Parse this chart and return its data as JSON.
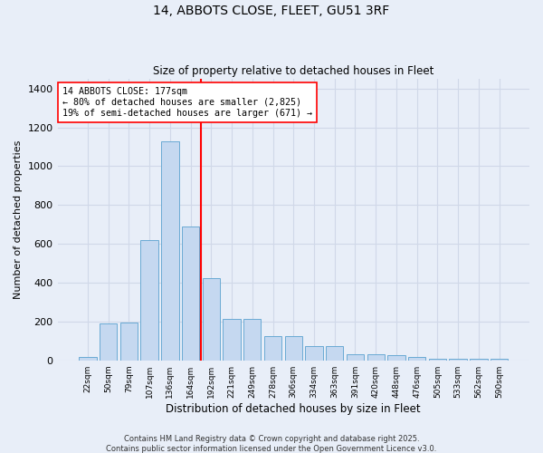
{
  "title": "14, ABBOTS CLOSE, FLEET, GU51 3RF",
  "subtitle": "Size of property relative to detached houses in Fleet",
  "xlabel": "Distribution of detached houses by size in Fleet",
  "ylabel": "Number of detached properties",
  "bin_labels": [
    "22sqm",
    "50sqm",
    "79sqm",
    "107sqm",
    "136sqm",
    "164sqm",
    "192sqm",
    "221sqm",
    "249sqm",
    "278sqm",
    "306sqm",
    "334sqm",
    "363sqm",
    "391sqm",
    "420sqm",
    "448sqm",
    "476sqm",
    "505sqm",
    "533sqm",
    "562sqm",
    "590sqm"
  ],
  "bar_values": [
    15,
    190,
    195,
    620,
    1130,
    690,
    425,
    215,
    215,
    125,
    125,
    75,
    75,
    30,
    30,
    25,
    15,
    10,
    10,
    10,
    10
  ],
  "bar_color": "#c5d8f0",
  "bar_edge_color": "#6aaad4",
  "background_color": "#e8eef8",
  "grid_color": "#d0d8e8",
  "red_line_bin": 6,
  "annotation_line1": "14 ABBOTS CLOSE: 177sqm",
  "annotation_line2": "← 80% of detached houses are smaller (2,825)",
  "annotation_line3": "19% of semi-detached houses are larger (671) →",
  "ylim": [
    0,
    1450
  ],
  "yticks": [
    0,
    200,
    400,
    600,
    800,
    1000,
    1200,
    1400
  ],
  "footer_line1": "Contains HM Land Registry data © Crown copyright and database right 2025.",
  "footer_line2": "Contains public sector information licensed under the Open Government Licence v3.0."
}
